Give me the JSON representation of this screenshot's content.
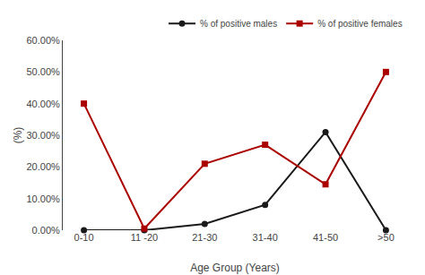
{
  "chart_data": {
    "type": "line",
    "categories": [
      "0-10",
      "11 -20",
      "21-30",
      "31-40",
      "41-50",
      ">50"
    ],
    "series": [
      {
        "name": "% of positive males",
        "color": "#1a1a1a",
        "marker": "circle",
        "values": [
          0.0,
          0.0,
          2.0,
          8.0,
          31.0,
          0.0
        ]
      },
      {
        "name": "% of positive females",
        "color": "#aa0000",
        "marker": "square",
        "values": [
          40.0,
          0.5,
          21.0,
          27.0,
          14.5,
          50.0
        ]
      }
    ],
    "xlabel": "Age Group (Years)",
    "ylabel": "(%)",
    "ylim": [
      0,
      60
    ],
    "yticks": [
      {
        "value": 0,
        "label": "0.00%"
      },
      {
        "value": 10,
        "label": "10.00%"
      },
      {
        "value": 20,
        "label": "20.00%"
      },
      {
        "value": 30,
        "label": "30.00%"
      },
      {
        "value": 40,
        "label": "40.00%"
      },
      {
        "value": 50,
        "label": "50.00%"
      },
      {
        "value": 60,
        "label": "60.00%"
      }
    ],
    "grid": false,
    "legend": "upper right"
  }
}
